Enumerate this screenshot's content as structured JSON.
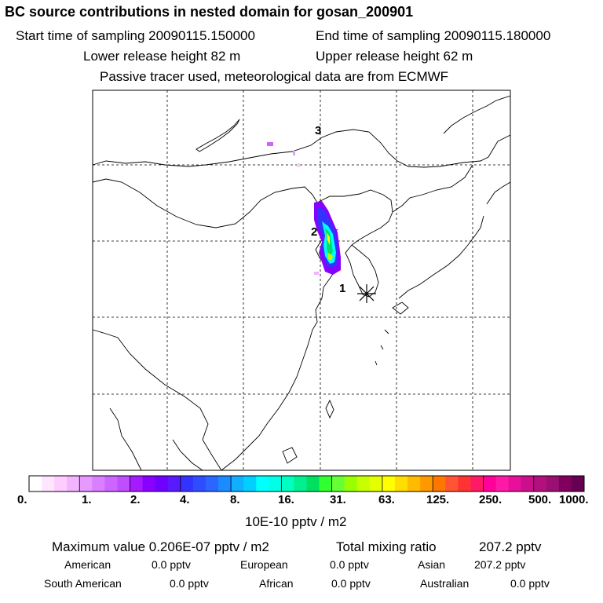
{
  "header": {
    "title": "BC  source contributions in nested domain for gosan_200901",
    "start_label": "Start time of sampling 20090115.150000",
    "end_label": "End time of sampling 20090115.180000",
    "lower_label": "Lower release height   82 m",
    "upper_label": "Upper release height   62 m",
    "note": "Passive tracer used, meteorological data are from ECMWF"
  },
  "map": {
    "markers": [
      {
        "label": "1"
      },
      {
        "label": "2"
      },
      {
        "label": "3"
      }
    ],
    "receptor_symbol": "asterisk-icon"
  },
  "colorbar": {
    "tick_labels": [
      "0.",
      "1.",
      "2.",
      "4.",
      "8.",
      "16.",
      "31.",
      "63.",
      "125.",
      "250.",
      "500.",
      "1000."
    ],
    "unit": "10E-10 pptv / m2",
    "colors": [
      "#ffffff",
      "#ffe6ff",
      "#ffccff",
      "#f2b3ff",
      "#e699ff",
      "#d97fff",
      "#cc66ff",
      "#c04dff",
      "#a61aff",
      "#8800ff",
      "#6f00ff",
      "#5a1aff",
      "#3333ff",
      "#2f4dff",
      "#2a66ff",
      "#1a8cff",
      "#10b0ff",
      "#00d0ff",
      "#00ffff",
      "#00ffe6",
      "#00ffc0",
      "#00f090",
      "#00e060",
      "#30ff30",
      "#66ff33",
      "#99ff00",
      "#c8ff00",
      "#e6ff00",
      "#ffff00",
      "#ffdd00",
      "#ffbb00",
      "#ff9900",
      "#ff7700",
      "#ff5533",
      "#ff3333",
      "#ff1a66",
      "#ff0099",
      "#ff1aa6",
      "#e6109a",
      "#cc108c",
      "#b3107f",
      "#991072",
      "#800060",
      "#660050"
    ]
  },
  "stats": {
    "max_label": "Maximum value  0.206E-07 pptv / m2",
    "total_label": "Total mixing ratio",
    "total_value": "207.2 pptv",
    "regions": [
      {
        "name": "American",
        "value": "0.0 pptv"
      },
      {
        "name": "European",
        "value": "0.0 pptv"
      },
      {
        "name": "Asian",
        "value": "207.2 pptv"
      },
      {
        "name": "South American",
        "value": "0.0 pptv"
      },
      {
        "name": "African",
        "value": "0.0 pptv"
      },
      {
        "name": "Australian",
        "value": "0.0 pptv"
      }
    ]
  }
}
